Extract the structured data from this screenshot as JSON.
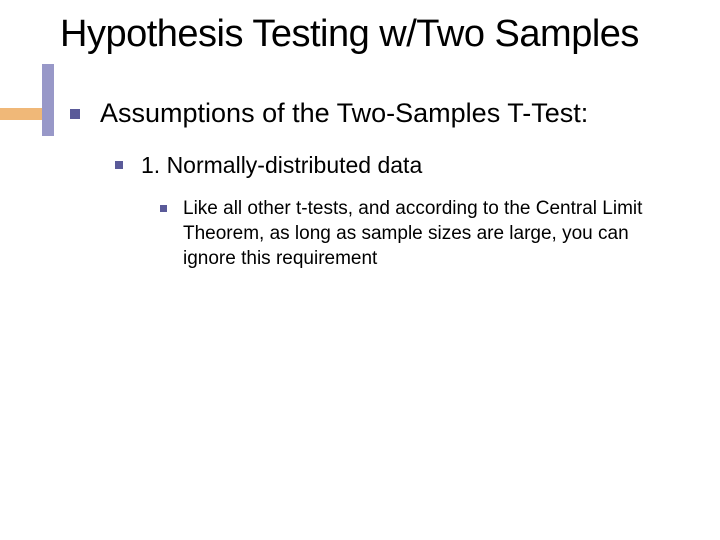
{
  "slide": {
    "title": "Hypothesis Testing w/Two Samples",
    "level1_text": "Assumptions of the Two-Samples T-Test:",
    "level2_text": "1. Normally-distributed data",
    "level3_text": "Like all other t-tests, and according to the Central Limit Theorem, as long as sample sizes are large, you can ignore this requirement"
  },
  "styling": {
    "background_color": "#ffffff",
    "title_color": "#000000",
    "title_fontsize": 38,
    "accent_horizontal_color": "#f0b878",
    "accent_vertical_color": "#9898c8",
    "bullet_color": "#5a5a99",
    "text_color": "#000000",
    "level1_fontsize": 27,
    "level2_fontsize": 23,
    "level3_fontsize": 19,
    "font_family": "Verdana"
  }
}
